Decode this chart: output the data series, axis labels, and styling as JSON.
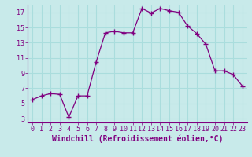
{
  "x": [
    0,
    1,
    2,
    3,
    4,
    5,
    6,
    7,
    8,
    9,
    10,
    11,
    12,
    13,
    14,
    15,
    16,
    17,
    18,
    19,
    20,
    21,
    22,
    23
  ],
  "y": [
    5.5,
    6.0,
    6.3,
    6.2,
    3.2,
    6.0,
    6.0,
    10.5,
    14.3,
    14.5,
    14.3,
    14.3,
    17.5,
    16.9,
    17.5,
    17.2,
    17.0,
    15.2,
    14.2,
    12.8,
    9.3,
    9.3,
    8.8,
    7.3
  ],
  "line_color": "#800080",
  "marker": "+",
  "marker_size": 4,
  "marker_lw": 1.0,
  "bg_color": "#c8eaea",
  "grid_color": "#aadddd",
  "xlabel": "Windchill (Refroidissement éolien,°C)",
  "xlabel_color": "#800080",
  "tick_color": "#800080",
  "spine_color": "#800080",
  "ylim": [
    2.5,
    18.0
  ],
  "xlim": [
    -0.5,
    23.5
  ],
  "yticks": [
    3,
    5,
    7,
    9,
    11,
    13,
    15,
    17
  ],
  "xticks": [
    0,
    1,
    2,
    3,
    4,
    5,
    6,
    7,
    8,
    9,
    10,
    11,
    12,
    13,
    14,
    15,
    16,
    17,
    18,
    19,
    20,
    21,
    22,
    23
  ],
  "xtick_labels": [
    "0",
    "1",
    "2",
    "3",
    "4",
    "5",
    "6",
    "7",
    "8",
    "9",
    "10",
    "11",
    "12",
    "13",
    "14",
    "15",
    "16",
    "17",
    "18",
    "19",
    "20",
    "21",
    "22",
    "23"
  ],
  "tick_fontsize": 6,
  "xlabel_fontsize": 7
}
